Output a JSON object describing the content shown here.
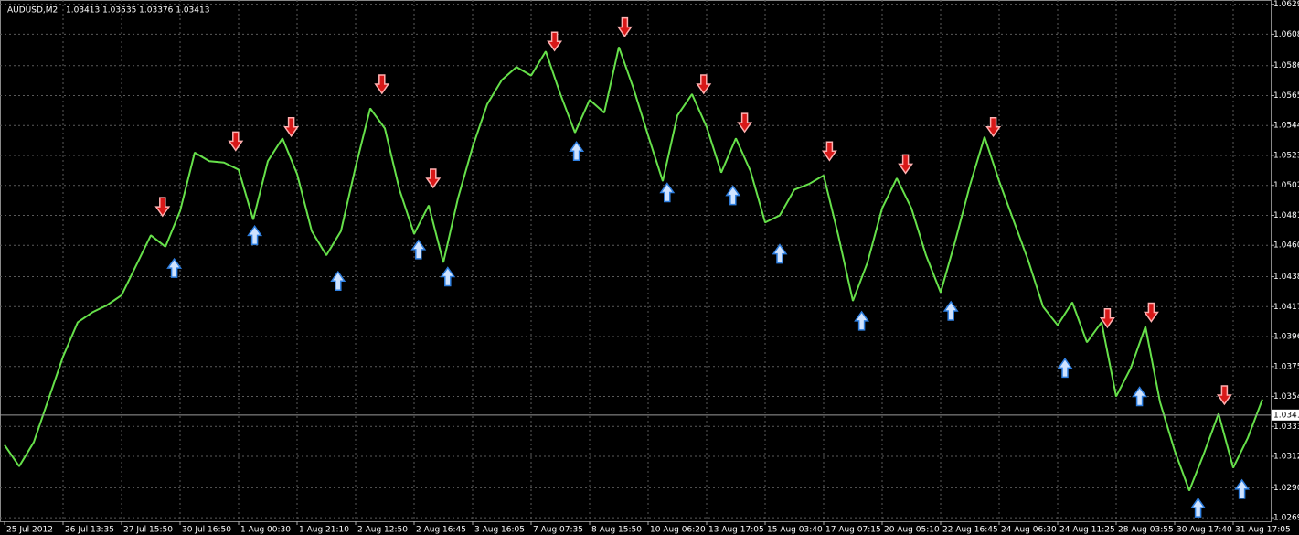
{
  "chart_data": {
    "type": "line",
    "title": "AUDUSD,M2",
    "quote": "1.03413 1.03535 1.03376 1.03413",
    "categories": [
      "25 Jul 2012",
      null,
      null,
      null,
      "26 Jul 13:35",
      null,
      null,
      null,
      "27 Jul 15:50",
      null,
      null,
      null,
      "30 Jul 16:50",
      null,
      null,
      null,
      "1 Aug 00:30",
      null,
      null,
      null,
      "1 Aug 21:10",
      null,
      null,
      null,
      "2 Aug 12:50",
      null,
      null,
      null,
      "2 Aug 16:45",
      null,
      null,
      null,
      "3 Aug 16:05",
      null,
      null,
      null,
      "7 Aug 07:35",
      null,
      null,
      null,
      "8 Aug 15:50",
      null,
      null,
      null,
      "10 Aug 06:20",
      null,
      null,
      null,
      "13 Aug 17:05",
      null,
      null,
      null,
      "15 Aug 03:40",
      null,
      null,
      null,
      "17 Aug 07:15",
      null,
      null,
      null,
      "20 Aug 05:10",
      null,
      null,
      null,
      "22 Aug 16:45",
      null,
      null,
      null,
      "24 Aug 06:30",
      null,
      null,
      null,
      "24 Aug 11:25",
      null,
      null,
      null,
      "28 Aug 03:55",
      null,
      null,
      null,
      "30 Aug 17:40",
      null,
      null,
      null,
      "31 Aug 17:05",
      null,
      null
    ],
    "series": [
      {
        "color": "#66e04a",
        "values": [
          1.032,
          1.0305,
          1.0322,
          1.0352,
          1.0382,
          1.0406,
          1.0413,
          1.0418,
          1.0425,
          1.0446,
          1.0467,
          1.0459,
          1.0484,
          1.0525,
          1.0519,
          1.0518,
          1.0513,
          1.0478,
          1.0519,
          1.0535,
          1.051,
          1.047,
          1.0453,
          1.047,
          1.0515,
          1.0556,
          1.0542,
          1.0499,
          1.0468,
          1.0488,
          1.0448,
          1.0493,
          1.0529,
          1.0559,
          1.0576,
          1.0585,
          1.0579,
          1.0596,
          1.0566,
          1.0539,
          1.0562,
          1.0553,
          1.0599,
          1.057,
          1.0537,
          1.0505,
          1.0551,
          1.0566,
          1.0543,
          1.0511,
          1.0535,
          1.0512,
          1.0476,
          1.0481,
          1.0499,
          1.0503,
          1.0509,
          1.0467,
          1.0421,
          1.0448,
          1.0486,
          1.0507,
          1.0486,
          1.0453,
          1.0427,
          1.0463,
          1.0502,
          1.0536,
          1.0505,
          1.0477,
          1.0449,
          1.0417,
          1.0404,
          1.042,
          1.0392,
          1.0406,
          1.0354,
          1.0374,
          1.0403,
          1.035,
          1.0316,
          1.0288,
          1.0314,
          1.0342,
          1.0304,
          1.0325,
          1.0352
        ]
      }
    ],
    "markers": [
      {
        "shape": "arrow-down",
        "color": "#d81818",
        "x": [
          10.8,
          15.8,
          19.6,
          25.8,
          29.3,
          37.6,
          42.4,
          47.8,
          50.6,
          56.4,
          61.6,
          67.6,
          75.4,
          78.4,
          83.4
        ],
        "values": [
          1.0487,
          1.0533,
          1.0543,
          1.0573,
          1.0507,
          1.0603,
          1.0613,
          1.0573,
          1.0546,
          1.0526,
          1.0517,
          1.0543,
          1.0409,
          1.0413,
          1.0355
        ]
      },
      {
        "shape": "arrow-up",
        "color": "#2f7fe0",
        "x": [
          11.6,
          17.1,
          22.8,
          28.3,
          30.3,
          39.1,
          45.3,
          49.8,
          53.0,
          58.6,
          64.7,
          72.5,
          77.6,
          81.6,
          84.6
        ],
        "values": [
          1.0444,
          1.0467,
          1.0435,
          1.0457,
          1.0438,
          1.0526,
          1.0497,
          1.0495,
          1.0454,
          1.0407,
          1.0414,
          1.0374,
          1.0354,
          1.0276,
          1.0289
        ]
      }
    ],
    "current_price": 1.0341,
    "ylim": [
      1.02665,
      1.0632
    ],
    "yticks": [
      1.0629,
      1.0608,
      1.0586,
      1.0565,
      1.0544,
      1.0523,
      1.0502,
      1.0481,
      {
        "value": 1.046,
        "label": "1.0460"
      },
      1.0438,
      1.0417,
      1.0396,
      1.0375,
      1.0354,
      1.0333,
      1.0312,
      {
        "value": 1.029,
        "label": "1.0290"
      },
      1.0269
    ],
    "grid": true
  }
}
